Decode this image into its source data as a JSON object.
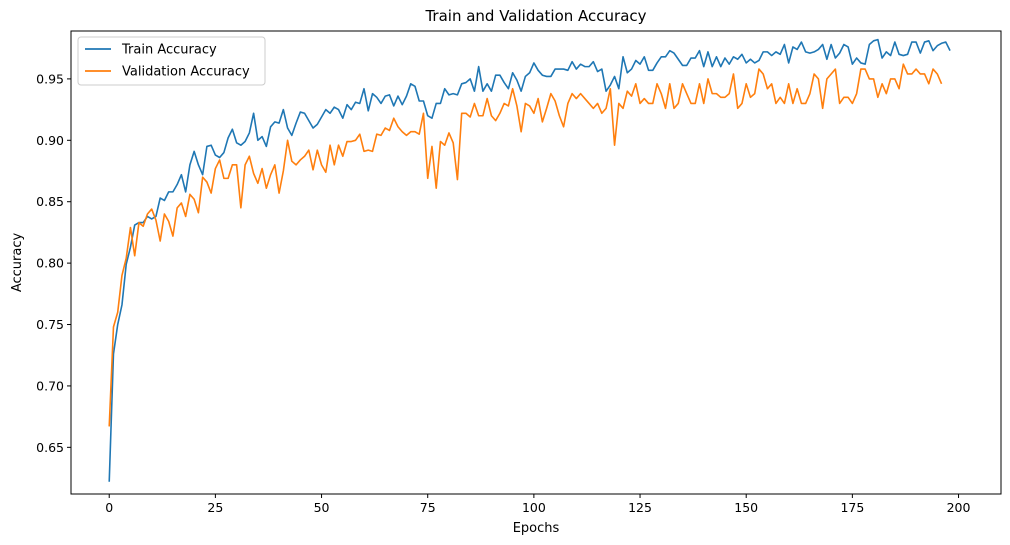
{
  "chart_data": {
    "type": "line",
    "title": "Train and Validation Accuracy",
    "xlabel": "Epochs",
    "ylabel": "Accuracy",
    "xlim": [
      -9,
      210
    ],
    "ylim": [
      0.612,
      0.989
    ],
    "xticks": [
      0,
      25,
      50,
      75,
      100,
      125,
      150,
      175,
      200
    ],
    "yticks": [
      0.65,
      0.7,
      0.75,
      0.8,
      0.85,
      0.9,
      0.95
    ],
    "ytick_labels": [
      "0.65",
      "0.70",
      "0.75",
      "0.80",
      "0.85",
      "0.90",
      "0.95"
    ],
    "grid": false,
    "legend_position": "top-left",
    "series": [
      {
        "name": "Train Accuracy",
        "color": "#1f77b4",
        "values": [
          0.622,
          0.726,
          0.75,
          0.766,
          0.799,
          0.813,
          0.831,
          0.833,
          0.833,
          0.838,
          0.836,
          0.838,
          0.853,
          0.851,
          0.858,
          0.858,
          0.864,
          0.872,
          0.858,
          0.88,
          0.891,
          0.88,
          0.872,
          0.895,
          0.896,
          0.888,
          0.886,
          0.89,
          0.902,
          0.909,
          0.898,
          0.896,
          0.899,
          0.906,
          0.922,
          0.9,
          0.903,
          0.895,
          0.911,
          0.915,
          0.914,
          0.925,
          0.91,
          0.904,
          0.914,
          0.923,
          0.922,
          0.916,
          0.91,
          0.913,
          0.919,
          0.925,
          0.922,
          0.927,
          0.925,
          0.918,
          0.929,
          0.925,
          0.931,
          0.93,
          0.942,
          0.924,
          0.938,
          0.935,
          0.93,
          0.936,
          0.937,
          0.928,
          0.936,
          0.929,
          0.936,
          0.946,
          0.944,
          0.932,
          0.932,
          0.92,
          0.918,
          0.93,
          0.93,
          0.942,
          0.937,
          0.938,
          0.937,
          0.946,
          0.947,
          0.95,
          0.94,
          0.96,
          0.94,
          0.946,
          0.94,
          0.953,
          0.953,
          0.947,
          0.942,
          0.955,
          0.949,
          0.94,
          0.952,
          0.955,
          0.963,
          0.957,
          0.953,
          0.952,
          0.952,
          0.958,
          0.958,
          0.958,
          0.957,
          0.964,
          0.958,
          0.962,
          0.96,
          0.96,
          0.964,
          0.956,
          0.958,
          0.94,
          0.945,
          0.952,
          0.942,
          0.968,
          0.955,
          0.958,
          0.965,
          0.962,
          0.968,
          0.957,
          0.957,
          0.963,
          0.968,
          0.968,
          0.973,
          0.971,
          0.966,
          0.961,
          0.961,
          0.967,
          0.967,
          0.973,
          0.96,
          0.972,
          0.96,
          0.968,
          0.96,
          0.967,
          0.962,
          0.968,
          0.966,
          0.97,
          0.963,
          0.966,
          0.963,
          0.965,
          0.972,
          0.972,
          0.969,
          0.972,
          0.97,
          0.978,
          0.963,
          0.976,
          0.974,
          0.98,
          0.972,
          0.971,
          0.972,
          0.974,
          0.978,
          0.966,
          0.978,
          0.967,
          0.971,
          0.978,
          0.976,
          0.962,
          0.967,
          0.963,
          0.962,
          0.978,
          0.981,
          0.982,
          0.967,
          0.972,
          0.969,
          0.98,
          0.97,
          0.969,
          0.97,
          0.98,
          0.98,
          0.971,
          0.98,
          0.981,
          0.973,
          0.977,
          0.979,
          0.98,
          0.973
        ]
      },
      {
        "name": "Validation Accuracy",
        "color": "#ff7f0e",
        "values": [
          0.667,
          0.748,
          0.76,
          0.79,
          0.804,
          0.829,
          0.806,
          0.833,
          0.83,
          0.84,
          0.844,
          0.835,
          0.818,
          0.84,
          0.834,
          0.822,
          0.845,
          0.849,
          0.838,
          0.856,
          0.852,
          0.841,
          0.87,
          0.866,
          0.857,
          0.877,
          0.884,
          0.869,
          0.869,
          0.88,
          0.88,
          0.845,
          0.88,
          0.887,
          0.873,
          0.865,
          0.877,
          0.861,
          0.872,
          0.88,
          0.857,
          0.875,
          0.9,
          0.883,
          0.88,
          0.884,
          0.887,
          0.892,
          0.876,
          0.892,
          0.88,
          0.874,
          0.896,
          0.88,
          0.896,
          0.887,
          0.899,
          0.899,
          0.9,
          0.905,
          0.891,
          0.892,
          0.891,
          0.905,
          0.904,
          0.91,
          0.908,
          0.918,
          0.911,
          0.907,
          0.904,
          0.907,
          0.907,
          0.905,
          0.922,
          0.869,
          0.895,
          0.861,
          0.899,
          0.896,
          0.906,
          0.898,
          0.868,
          0.922,
          0.922,
          0.919,
          0.93,
          0.92,
          0.92,
          0.934,
          0.92,
          0.916,
          0.922,
          0.93,
          0.928,
          0.942,
          0.928,
          0.907,
          0.93,
          0.928,
          0.922,
          0.934,
          0.915,
          0.926,
          0.938,
          0.932,
          0.92,
          0.911,
          0.93,
          0.938,
          0.934,
          0.938,
          0.934,
          0.93,
          0.926,
          0.93,
          0.922,
          0.926,
          0.942,
          0.896,
          0.93,
          0.926,
          0.94,
          0.936,
          0.946,
          0.93,
          0.934,
          0.93,
          0.93,
          0.946,
          0.938,
          0.926,
          0.946,
          0.926,
          0.93,
          0.946,
          0.938,
          0.93,
          0.93,
          0.946,
          0.93,
          0.95,
          0.938,
          0.938,
          0.935,
          0.935,
          0.938,
          0.954,
          0.926,
          0.93,
          0.946,
          0.935,
          0.938,
          0.958,
          0.954,
          0.942,
          0.946,
          0.93,
          0.935,
          0.93,
          0.946,
          0.93,
          0.942,
          0.93,
          0.93,
          0.938,
          0.954,
          0.95,
          0.926,
          0.95,
          0.954,
          0.958,
          0.93,
          0.935,
          0.935,
          0.93,
          0.938,
          0.958,
          0.958,
          0.95,
          0.95,
          0.935,
          0.946,
          0.938,
          0.95,
          0.95,
          0.942,
          0.962,
          0.954,
          0.954,
          0.958,
          0.954,
          0.954,
          0.946,
          0.958,
          0.954,
          0.946
        ]
      }
    ]
  }
}
